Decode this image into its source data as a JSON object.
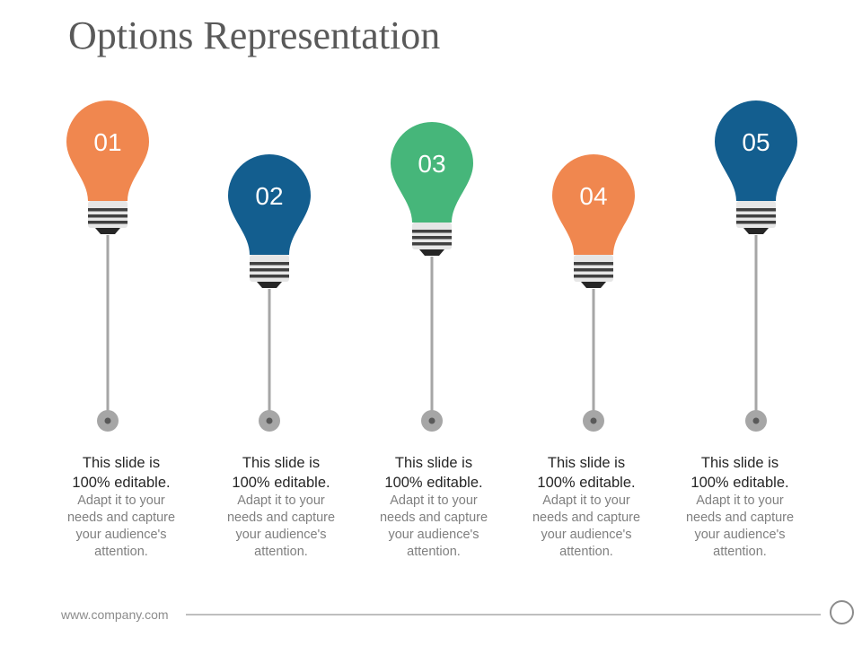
{
  "title": "Options Representation",
  "options": [
    {
      "number": "01",
      "color": "#F0874F",
      "head1": "This slide is",
      "head2": "100% editable.",
      "body": [
        "Adapt it to your",
        "needs and capture",
        "your audience's",
        "attention."
      ]
    },
    {
      "number": "02",
      "color": "#135E8F",
      "head1": "This slide is",
      "head2": "100% editable.",
      "body": [
        "Adapt it to your",
        "needs and capture",
        "your audience's",
        "attention."
      ]
    },
    {
      "number": "03",
      "color": "#46B67A",
      "head1": "This slide is",
      "head2": "100% editable.",
      "body": [
        "Adapt it to your",
        "needs and capture",
        "your audience's",
        "attention."
      ]
    },
    {
      "number": "04",
      "color": "#F0874F",
      "head1": "This slide is",
      "head2": "100% editable.",
      "body": [
        "Adapt it to your",
        "needs and capture",
        "your audience's",
        "attention."
      ]
    },
    {
      "number": "05",
      "color": "#135E8F",
      "head1": "This slide is",
      "head2": "100% editable.",
      "body": [
        "Adapt it to your",
        "needs and capture",
        "your audience's",
        "attention."
      ]
    }
  ],
  "footer": {
    "url": "www.company.com"
  },
  "icons": {
    "bulb": "lightbulb-icon",
    "pin": "pin-dot-icon",
    "end": "circle-icon"
  }
}
